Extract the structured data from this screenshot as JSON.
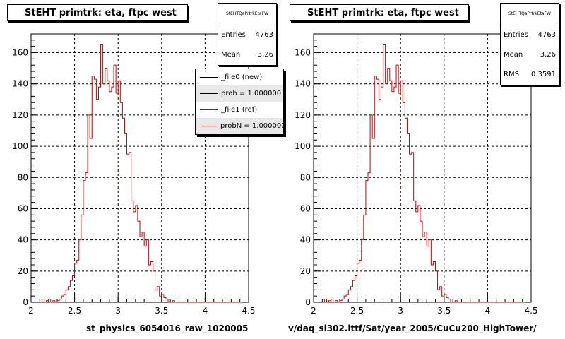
{
  "colors": {
    "hist_line": "#cc0000",
    "ref_line": "#000000",
    "grid": "#000000"
  },
  "panels": [
    {
      "title": "StEHT primtrk: eta, ftpc west",
      "stats": {
        "name": "StEHTQaPrtrkEtaFW",
        "rows": [
          {
            "label": "Entries",
            "value": "4763"
          },
          {
            "label": "Mean",
            "value": "3.26"
          }
        ]
      },
      "legend": [
        {
          "label": "_file0 (new)",
          "color": "#000000"
        },
        {
          "label": "prob = 1.000000",
          "color": "#000000"
        },
        {
          "label": "_file1 (ref)",
          "color": "#cc0000"
        },
        {
          "label": "probN = 1.000000",
          "color": "#cc0000"
        }
      ],
      "xtitle": "st_physics_6054016_raw_1020005"
    },
    {
      "title": "StEHT primtrk: eta, ftpc west",
      "stats": {
        "name": "StEHTQaPrtrkEtaFW",
        "rows": [
          {
            "label": "Entries",
            "value": "4763"
          },
          {
            "label": "Mean",
            "value": "3.26"
          },
          {
            "label": "RMS",
            "value": "0.3591"
          }
        ]
      },
      "legend": [],
      "xtitle": "v/daq_sl302.ittf/Sat/year_2005/CuCu200_HighTower/"
    }
  ],
  "chart_data": {
    "type": "bar",
    "xlim": [
      2,
      4.5
    ],
    "ylim": [
      0,
      172
    ],
    "x_ticks": [
      "2",
      "2.5",
      "3",
      "3.5",
      "4",
      "4.5"
    ],
    "y_ticks": [
      "0",
      "20",
      "40",
      "60",
      "80",
      "100",
      "120",
      "140",
      "160"
    ],
    "grid": true,
    "bin_edges": [
      2.125,
      2.75,
      2.775,
      2.8,
      2.825,
      2.85,
      2.875,
      2.9,
      2.925,
      2.95,
      2.975,
      3.0,
      3.025,
      3.05,
      3.075,
      3.1,
      3.125,
      3.15,
      3.175,
      3.2,
      3.225,
      3.25,
      3.275,
      3.3,
      3.325,
      3.35,
      3.375,
      3.4,
      3.425,
      3.45,
      3.475,
      3.5,
      3.525,
      3.55,
      3.575,
      3.6,
      3.625,
      3.65,
      3.675,
      3.7,
      3.725,
      3.75,
      3.775,
      3.8,
      3.825,
      3.85,
      3.875,
      3.9,
      3.925,
      3.95,
      3.975,
      4.0,
      4.375
    ],
    "series": [
      {
        "x": [
          2.1,
          2.125,
          2.15,
          2.175,
          2.2,
          2.225,
          2.25,
          2.275,
          2.3,
          2.325,
          2.35,
          2.375,
          2.4,
          2.425,
          2.45,
          2.475,
          2.5,
          2.525,
          2.55,
          2.575,
          2.6,
          2.625,
          2.65,
          2.675,
          2.7,
          2.725,
          2.75,
          2.775,
          2.8,
          2.825,
          2.85,
          2.875,
          2.9,
          2.925,
          2.95,
          2.975,
          3.0,
          3.025,
          3.05,
          3.075,
          3.1,
          3.125,
          3.15,
          3.175,
          3.2,
          3.225,
          3.25,
          3.275,
          3.3,
          3.325,
          3.35,
          3.375,
          3.4,
          3.425,
          3.45,
          3.475,
          3.5,
          3.525,
          3.55,
          3.575,
          3.6,
          3.625,
          3.65,
          3.675,
          3.7,
          3.725,
          3.75,
          3.775,
          3.8,
          3.825,
          3.85,
          3.875,
          3.9,
          3.925,
          3.95,
          3.975,
          4.0,
          4.025,
          4.05,
          4.075,
          4.1,
          4.125,
          4.15,
          4.175,
          4.2,
          4.225,
          4.25,
          4.275,
          4.3,
          4.325,
          4.35,
          4.375,
          4.4
        ],
        "y": [
          0,
          2,
          0,
          1,
          2,
          0,
          1,
          0,
          1,
          2,
          4,
          5,
          8,
          10,
          14,
          17,
          25,
          27,
          40,
          56,
          78,
          83,
          120,
          105,
          145,
          143,
          130,
          138,
          165,
          140,
          150,
          142,
          135,
          138,
          152,
          134,
          142,
          128,
          118,
          108,
          95,
          96,
          65,
          58,
          62,
          52,
          42,
          45,
          36,
          40,
          24,
          26,
          20,
          8,
          10,
          4,
          5,
          3,
          2,
          0,
          0,
          1,
          0,
          0,
          0,
          0,
          0,
          0,
          0,
          0,
          0,
          0,
          0,
          0,
          0,
          0,
          0,
          0,
          0,
          0,
          0,
          0,
          0,
          0,
          0,
          0,
          0,
          0,
          0,
          0,
          0,
          0,
          0
        ],
        "values": [
          0,
          2,
          0,
          1,
          2,
          0,
          1,
          0,
          1,
          2,
          4,
          5,
          8,
          10,
          14,
          17,
          25,
          27,
          40,
          56,
          78,
          83,
          120,
          105,
          145,
          143,
          130,
          138,
          165,
          140,
          150,
          142,
          135,
          138,
          152,
          134,
          142,
          128,
          118,
          108,
          95,
          96,
          65,
          58,
          62,
          52,
          42,
          45,
          36,
          40,
          24,
          26,
          20,
          8,
          10,
          4,
          5,
          3,
          2,
          0,
          0,
          1,
          0,
          0,
          0,
          0,
          0,
          0,
          0,
          0,
          0,
          0,
          0,
          0,
          0,
          0,
          0,
          0,
          0,
          0,
          0,
          0,
          0,
          0,
          0,
          0,
          0,
          0,
          0,
          0,
          0,
          0,
          0
        ]
      }
    ],
    "bin_width": 0.025
  }
}
